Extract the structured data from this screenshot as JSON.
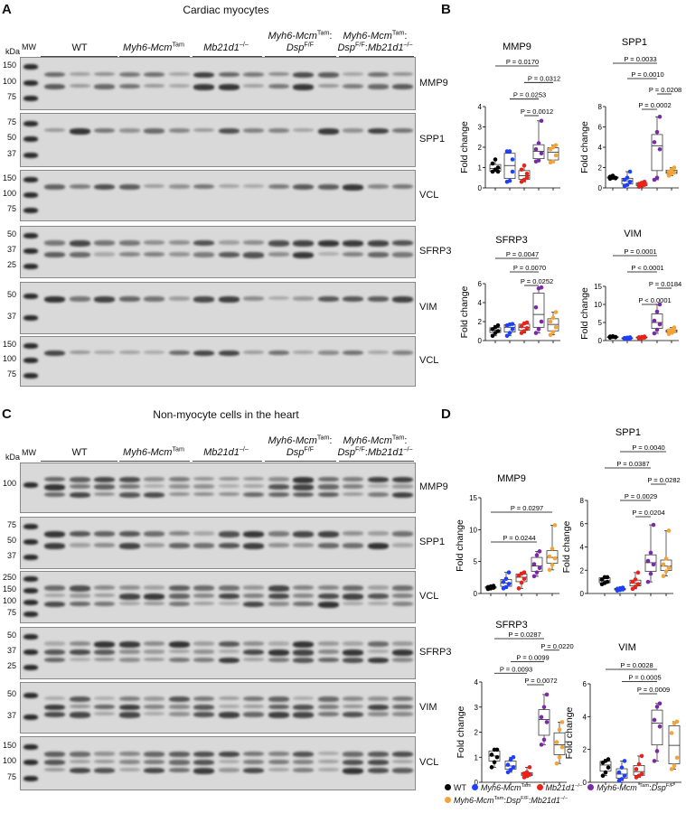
{
  "panels": {
    "A": {
      "letter": "A",
      "title": "Cardiac myocytes"
    },
    "B": {
      "letter": "B"
    },
    "C": {
      "letter": "C",
      "title": "Non-myocyte cells in the heart"
    },
    "D": {
      "letter": "D"
    }
  },
  "mw_label": "MW",
  "kda_label": "kDa",
  "groups": [
    {
      "segments": [
        {
          "t": "WT"
        }
      ]
    },
    {
      "segments": [
        {
          "t": "Myh6-Mcm",
          "i": true
        },
        {
          "t": "Tam",
          "sup": true
        }
      ]
    },
    {
      "segments": [
        {
          "t": "Mb21d1",
          "i": true
        },
        {
          "t": "–/–",
          "sup": true
        }
      ]
    },
    {
      "segments": [
        {
          "t": "Myh6-Mcm",
          "i": true
        },
        {
          "t": "Tam",
          "sup": true
        },
        {
          "t": ":"
        },
        {
          "br": true
        },
        {
          "t": "Dsp",
          "i": true
        },
        {
          "t": "F/F",
          "sup": true
        }
      ]
    },
    {
      "segments": [
        {
          "t": "Myh6-Mcm",
          "i": true
        },
        {
          "t": "Tam",
          "sup": true
        },
        {
          "t": ":"
        },
        {
          "br": true
        },
        {
          "t": "Dsp",
          "i": true
        },
        {
          "t": "F/F",
          "sup": true
        },
        {
          "t": ":"
        },
        {
          "t": "Mb21d1",
          "i": true
        },
        {
          "t": "–/–",
          "sup": true
        }
      ]
    }
  ],
  "blots_A": [
    {
      "label": "MMP9",
      "kda": [
        "150",
        "100",
        "75"
      ]
    },
    {
      "label": "SPP1",
      "kda": [
        "75",
        "50",
        "37"
      ]
    },
    {
      "label": "VCL",
      "kda": [
        "150",
        "100",
        "75"
      ]
    },
    {
      "label": "SFRP3",
      "kda": [
        "50",
        "37",
        "25"
      ]
    },
    {
      "label": "VIM",
      "kda": [
        "50",
        "37"
      ]
    },
    {
      "label": "VCL",
      "kda": [
        "150",
        "100",
        "75"
      ]
    }
  ],
  "blots_C": [
    {
      "label": "MMP9",
      "kda": [
        "100"
      ]
    },
    {
      "label": "SPP1",
      "kda": [
        "75",
        "50",
        "37"
      ]
    },
    {
      "label": "VCL",
      "kda": [
        "250",
        "150",
        "100",
        "75"
      ]
    },
    {
      "label": "SFRP3",
      "kda": [
        "50",
        "37",
        "25"
      ]
    },
    {
      "label": "VIM",
      "kda": [
        "50",
        "37"
      ]
    },
    {
      "label": "VCL",
      "kda": [
        "150",
        "100",
        "75"
      ]
    }
  ],
  "colors": {
    "WT": "#000000",
    "Myh6-Mcm": "#1f3fff",
    "Mb21d1": "#e8231a",
    "Dsp": "#7a2aa8",
    "Dsp-Mb21d1": "#f2a43a"
  },
  "legend": [
    {
      "color": "#000000",
      "segments": [
        {
          "t": "WT"
        }
      ]
    },
    {
      "color": "#1f3fff",
      "segments": [
        {
          "t": "Myh6-Mcm",
          "i": true
        },
        {
          "t": "Tam",
          "sup": true
        }
      ]
    },
    {
      "color": "#e8231a",
      "segments": [
        {
          "t": "Mb21d1",
          "i": true
        },
        {
          "t": "–/–",
          "sup": true
        }
      ]
    },
    {
      "color": "#7a2aa8",
      "segments": [
        {
          "t": "Myh6-Mcm ",
          "i": true
        },
        {
          "t": "Tam",
          "sup": true
        },
        {
          "t": ":"
        },
        {
          "t": "Dsp",
          "i": true
        },
        {
          "t": "F/F",
          "sup": true
        }
      ]
    },
    {
      "color": "#f2a43a",
      "segments": [
        {
          "t": "Myh6-Mcm",
          "i": true
        },
        {
          "t": "Tam",
          "sup": true
        },
        {
          "t": ":"
        },
        {
          "t": "Dsp",
          "i": true
        },
        {
          "t": "F/F",
          "sup": true
        },
        {
          "t": ":"
        },
        {
          "t": "Mb21d1",
          "i": true
        },
        {
          "t": "–/–",
          "sup": true
        }
      ]
    }
  ],
  "chart_data": [
    {
      "panel": "B",
      "type": "box",
      "title": "MMP9",
      "ylabel": "Fold change",
      "ylim": [
        0,
        4
      ],
      "yticks": [
        0,
        1,
        2,
        3,
        4
      ],
      "points": [
        [
          0.8,
          0.9,
          1.0,
          1.2,
          1.4,
          0.8
        ],
        [
          0.3,
          0.35,
          0.8,
          1.8,
          1.8,
          1.4
        ],
        [
          0.3,
          0.4,
          0.7,
          0.9,
          1.1,
          0.5
        ],
        [
          1.3,
          1.35,
          1.7,
          1.9,
          2.2,
          3.3
        ],
        [
          1.25,
          1.3,
          1.6,
          1.9,
          2.0,
          2.1
        ]
      ],
      "comparisons": [
        {
          "a": 0,
          "b": 3,
          "label": "P = 0.0170"
        },
        {
          "a": 2,
          "b": 4,
          "label": "P = 0.0312"
        },
        {
          "a": 1,
          "b": 3,
          "label": "P = 0.0253"
        },
        {
          "a": 2,
          "b": 3,
          "label": "P = 0.0012"
        }
      ]
    },
    {
      "panel": "B",
      "type": "box",
      "title": "SPP1",
      "ylabel": "Fold change",
      "ylim": [
        0,
        8
      ],
      "yticks": [
        0,
        2,
        4,
        6,
        8
      ],
      "points": [
        [
          0.9,
          1.0,
          1.0,
          1.1,
          1.2,
          0.95
        ],
        [
          0.2,
          0.3,
          0.6,
          0.8,
          1.0,
          1.6
        ],
        [
          0.1,
          0.2,
          0.3,
          0.4,
          0.5,
          0.6
        ],
        [
          0.8,
          1.0,
          3.8,
          4.5,
          5.5,
          7.0
        ],
        [
          1.2,
          1.4,
          1.5,
          1.6,
          1.8,
          2.0
        ]
      ],
      "comparisons": [
        {
          "a": 0,
          "b": 3,
          "label": "P = 0.0033"
        },
        {
          "a": 1,
          "b": 3,
          "label": "P = 0.0010"
        },
        {
          "a": 3,
          "b": 4,
          "label": "P = 0.0208"
        },
        {
          "a": 2,
          "b": 3,
          "label": "P = 0.0002"
        }
      ]
    },
    {
      "panel": "B",
      "type": "box",
      "title": "SFRP3",
      "ylabel": "Fold change",
      "ylim": [
        0,
        6
      ],
      "yticks": [
        0,
        2,
        4,
        6
      ],
      "points": [
        [
          0.5,
          0.8,
          1.0,
          1.2,
          1.4,
          1.6
        ],
        [
          0.5,
          0.8,
          1.2,
          1.6,
          1.7,
          1.75
        ],
        [
          0.8,
          1.0,
          1.3,
          1.5,
          1.8,
          1.9
        ],
        [
          0.8,
          1.2,
          2.0,
          3.5,
          5.5,
          5.6
        ],
        [
          0.6,
          0.9,
          1.4,
          2.0,
          2.4,
          3.0
        ]
      ],
      "comparisons": [
        {
          "a": 0,
          "b": 3,
          "label": "P = 0.0047"
        },
        {
          "a": 1,
          "b": 3,
          "label": "P = 0.0070"
        },
        {
          "a": 2,
          "b": 3,
          "label": "P = 0.0252"
        }
      ]
    },
    {
      "panel": "B",
      "type": "box",
      "title": "VIM",
      "ylabel": "Fold change",
      "ylim": [
        0,
        15
      ],
      "yticks": [
        0,
        5,
        10,
        15
      ],
      "points": [
        [
          0.8,
          1.0,
          1.0,
          1.1,
          1.2,
          0.9
        ],
        [
          0.4,
          0.5,
          0.6,
          0.7,
          0.8,
          0.9
        ],
        [
          0.6,
          0.7,
          0.8,
          0.9,
          1.0,
          1.1
        ],
        [
          2.0,
          3.0,
          4.5,
          5.5,
          8.0,
          10.0
        ],
        [
          1.8,
          2.2,
          2.5,
          2.8,
          3.0,
          3.6
        ]
      ],
      "comparisons": [
        {
          "a": 0,
          "b": 3,
          "label": "P = 0.0001"
        },
        {
          "a": 1,
          "b": 3,
          "label": "P < 0.0001"
        },
        {
          "a": 3,
          "b": 4,
          "label": "P = 0.0184"
        },
        {
          "a": 2,
          "b": 3,
          "label": "P < 0.0001"
        }
      ]
    },
    {
      "panel": "D",
      "type": "box",
      "title": "MMP9",
      "ylabel": "Fold change",
      "ylim": [
        0,
        15
      ],
      "yticks": [
        0,
        5,
        10,
        15
      ],
      "points": [
        [
          0.7,
          0.8,
          0.9,
          1.0,
          1.1,
          1.2
        ],
        [
          0.8,
          1.0,
          1.5,
          1.8,
          2.3,
          3.3
        ],
        [
          0.8,
          1.7,
          2.3,
          2.8,
          3.1,
          3.3
        ],
        [
          2.7,
          3.3,
          4.0,
          4.6,
          6.0,
          6.6
        ],
        [
          3.7,
          4.5,
          5.5,
          5.8,
          7.0,
          10.7
        ]
      ],
      "comparisons": [
        {
          "a": 0,
          "b": 4,
          "label": "P = 0.0297"
        },
        {
          "a": 0,
          "b": 3,
          "label": "P = 0.0244"
        }
      ]
    },
    {
      "panel": "D",
      "type": "box",
      "title": "SPP1",
      "ylabel": "Fold change",
      "ylim": [
        0,
        8
      ],
      "yticks": [
        0,
        2,
        4,
        6,
        8
      ],
      "points": [
        [
          0.8,
          0.9,
          1.0,
          1.2,
          1.4,
          1.4
        ],
        [
          0.25,
          0.3,
          0.35,
          0.4,
          0.45,
          0.5
        ],
        [
          0.4,
          0.6,
          0.8,
          1.0,
          1.2,
          1.8
        ],
        [
          1.0,
          1.7,
          2.5,
          2.8,
          3.5,
          5.9
        ],
        [
          1.5,
          1.9,
          2.2,
          2.5,
          3.0,
          5.4
        ]
      ],
      "comparisons": [
        {
          "a": 1,
          "b": 4,
          "label": "P = 0.0040"
        },
        {
          "a": 0,
          "b": 3,
          "label": "P = 0.0387"
        },
        {
          "a": 3,
          "b": 4,
          "label": "P = 0.0282"
        },
        {
          "a": 1,
          "b": 3,
          "label": "P = 0.0029"
        },
        {
          "a": 2,
          "b": 3,
          "label": "P = 0.0204"
        }
      ]
    },
    {
      "panel": "D",
      "type": "box",
      "title": "SFRP3",
      "ylabel": "Fold change",
      "ylim": [
        0,
        4
      ],
      "yticks": [
        0,
        1,
        2,
        3,
        4
      ],
      "points": [
        [
          0.6,
          0.8,
          1.0,
          1.1,
          1.3,
          1.3
        ],
        [
          0.4,
          0.5,
          0.6,
          0.7,
          0.9,
          1.0
        ],
        [
          0.2,
          0.25,
          0.3,
          0.35,
          0.4,
          0.6
        ],
        [
          1.5,
          1.7,
          2.4,
          2.6,
          3.0,
          3.5
        ],
        [
          0.75,
          1.0,
          1.4,
          1.6,
          2.1,
          2.4
        ]
      ],
      "comparisons": [
        {
          "a": 0,
          "b": 3,
          "label": "P = 0.0287"
        },
        {
          "a": 3,
          "b": 4,
          "label": "P = 0.0220"
        },
        {
          "a": 1,
          "b": 3,
          "label": "P = 0.0099"
        },
        {
          "a": 0,
          "b": 2,
          "label": "P = 0.0093"
        },
        {
          "a": 2,
          "b": 3,
          "label": "P = 0.0072"
        }
      ]
    },
    {
      "panel": "D",
      "type": "box",
      "title": "VIM",
      "ylabel": "Fold change",
      "ylim": [
        0,
        6
      ],
      "yticks": [
        0,
        2,
        4,
        6
      ],
      "points": [
        [
          0.4,
          0.6,
          0.9,
          1.2,
          1.3,
          1.4
        ],
        [
          0.1,
          0.2,
          0.4,
          0.6,
          0.9,
          1.3
        ],
        [
          0.3,
          0.4,
          0.5,
          0.8,
          1.1,
          1.6
        ],
        [
          1.3,
          1.9,
          3.4,
          3.8,
          4.6,
          4.8
        ],
        [
          0.8,
          1.0,
          1.5,
          3.0,
          3.6,
          3.7
        ]
      ],
      "comparisons": [
        {
          "a": 0,
          "b": 3,
          "label": "P = 0.0028"
        },
        {
          "a": 1,
          "b": 3,
          "label": "P = 0.0005"
        },
        {
          "a": 2,
          "b": 3,
          "label": "P = 0.0009"
        }
      ]
    }
  ]
}
